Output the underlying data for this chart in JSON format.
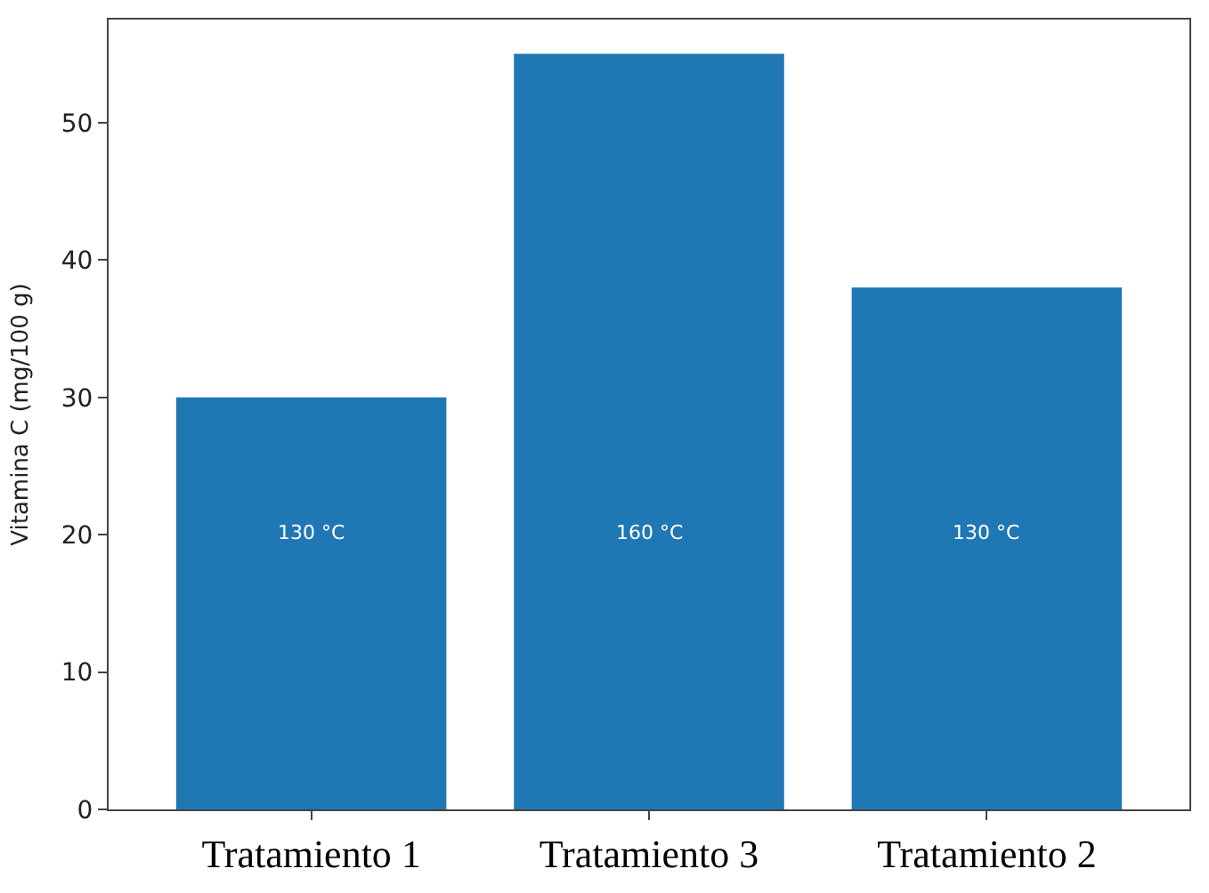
{
  "chart_data": {
    "type": "bar",
    "ylabel": "Vitamina C (mg/100 g)",
    "categories": [
      "Tratamiento 1",
      "Tratamiento 3",
      "Tratamiento 2"
    ],
    "values": [
      30,
      55,
      38
    ],
    "color": "#1f77b4",
    "ylim": [
      0,
      57.5
    ],
    "yticks": [
      0,
      10,
      20,
      30,
      40,
      50
    ],
    "annotations": [
      "130 °C",
      "160 °C",
      "130 °C"
    ]
  }
}
